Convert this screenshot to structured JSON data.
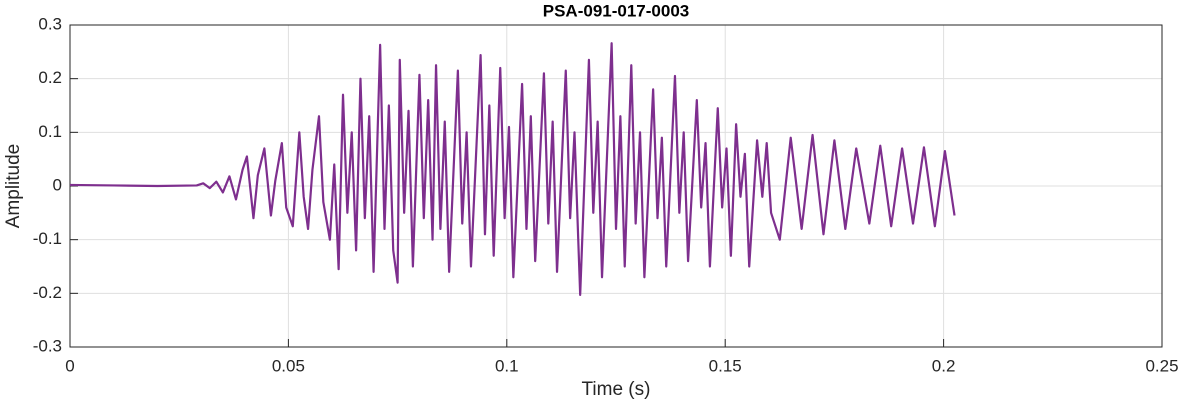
{
  "chart_data": {
    "type": "line",
    "title": "PSA-091-017-0003",
    "xlabel": "Time (s)",
    "ylabel": "Amplitude",
    "color": "#7e2f8e",
    "grid": true,
    "xlim": [
      0,
      0.25
    ],
    "xticks": [
      0,
      0.05,
      0.1,
      0.15,
      0.2,
      0.25
    ],
    "ylim": [
      -0.3,
      0.3
    ],
    "yticks": [
      -0.3,
      -0.2,
      -0.1,
      0,
      0.1,
      0.2,
      0.3
    ],
    "x": [
      0,
      0.01,
      0.02,
      0.029,
      0.0305,
      0.032,
      0.0335,
      0.035,
      0.0365,
      0.038,
      0.0395,
      0.0405,
      0.042,
      0.043,
      0.0445,
      0.046,
      0.047,
      0.0485,
      0.0495,
      0.051,
      0.0525,
      0.0535,
      0.0545,
      0.0555,
      0.057,
      0.058,
      0.0595,
      0.0605,
      0.0615,
      0.0625,
      0.0635,
      0.0645,
      0.0655,
      0.0665,
      0.0675,
      0.0685,
      0.0695,
      0.071,
      0.072,
      0.073,
      0.074,
      0.075,
      0.0755,
      0.0765,
      0.0775,
      0.0785,
      0.08,
      0.081,
      0.082,
      0.083,
      0.0838,
      0.0848,
      0.0858,
      0.0868,
      0.0888,
      0.0898,
      0.0908,
      0.0918,
      0.094,
      0.095,
      0.096,
      0.097,
      0.0985,
      0.0995,
      0.1005,
      0.1015,
      0.1035,
      0.1045,
      0.1055,
      0.1065,
      0.1085,
      0.1095,
      0.1105,
      0.1115,
      0.1135,
      0.1145,
      0.1155,
      0.1168,
      0.1188,
      0.1198,
      0.1208,
      0.1218,
      0.124,
      0.125,
      0.126,
      0.127,
      0.1285,
      0.1295,
      0.1305,
      0.1315,
      0.1335,
      0.1345,
      0.1355,
      0.1365,
      0.1385,
      0.1395,
      0.1405,
      0.1415,
      0.1435,
      0.1445,
      0.1455,
      0.1465,
      0.1483,
      0.1493,
      0.1503,
      0.1513,
      0.1525,
      0.1535,
      0.1545,
      0.1555,
      0.1573,
      0.1585,
      0.1595,
      0.1605,
      0.1625,
      0.165,
      0.1675,
      0.17,
      0.1725,
      0.175,
      0.1775,
      0.18,
      0.183,
      0.1855,
      0.188,
      0.1905,
      0.193,
      0.1955,
      0.198,
      0.2003,
      0.2025
    ],
    "values": [
      0.002,
      0.001,
      0,
      0.001,
      0.005,
      -0.004,
      0.008,
      -0.012,
      0.018,
      -0.025,
      0.03,
      0.055,
      -0.06,
      0.02,
      0.07,
      -0.055,
      0.01,
      0.08,
      -0.04,
      -0.075,
      0.1,
      -0.02,
      -0.08,
      0.03,
      0.13,
      -0.03,
      -0.1,
      0.04,
      -0.155,
      0.17,
      -0.05,
      0.1,
      -0.12,
      0.2,
      -0.06,
      0.13,
      -0.16,
      0.263,
      -0.08,
      0.15,
      -0.12,
      -0.18,
      0.235,
      -0.05,
      0.14,
      -0.15,
      0.207,
      -0.06,
      0.16,
      -0.1,
      0.225,
      -0.08,
      0.12,
      -0.16,
      0.215,
      -0.07,
      0.1,
      -0.15,
      0.244,
      -0.09,
      0.15,
      -0.13,
      0.22,
      -0.06,
      0.11,
      -0.17,
      0.19,
      -0.08,
      0.13,
      -0.14,
      0.21,
      -0.07,
      0.12,
      -0.16,
      0.215,
      -0.06,
      0.1,
      -0.203,
      0.235,
      -0.05,
      0.12,
      -0.17,
      0.266,
      -0.08,
      0.13,
      -0.15,
      0.225,
      -0.07,
      0.1,
      -0.17,
      0.18,
      -0.06,
      0.09,
      -0.15,
      0.205,
      -0.05,
      0.1,
      -0.14,
      0.16,
      -0.04,
      0.08,
      -0.15,
      0.145,
      -0.04,
      0.07,
      -0.13,
      0.115,
      -0.02,
      0.06,
      -0.15,
      0.085,
      -0.02,
      0.08,
      -0.05,
      -0.1,
      0.09,
      -0.08,
      0.095,
      -0.09,
      0.085,
      -0.08,
      0.07,
      -0.07,
      0.075,
      -0.075,
      0.07,
      -0.07,
      0.072,
      -0.075,
      0.065,
      -0.055
    ]
  }
}
